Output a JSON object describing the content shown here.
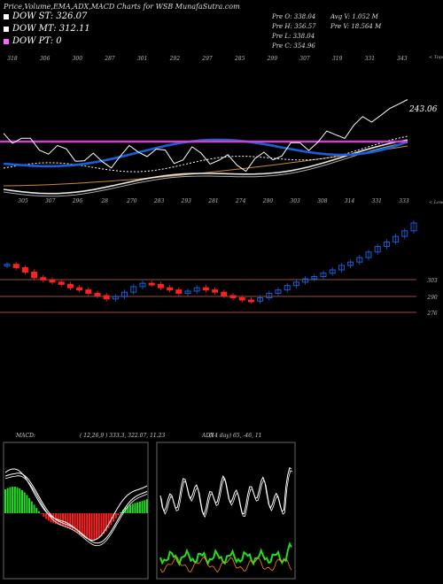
{
  "header": {
    "title": "Price,Volume,EMA,ADX,MACD Charts for WSB MunafaSutra.com",
    "legend": [
      {
        "label": "DOW ST: 326.07",
        "color": "#ffffff"
      },
      {
        "label": "DOW MT: 312.11",
        "color": "#ffffff"
      },
      {
        "label": "DOW PT: 0",
        "color": "#ff66ff"
      }
    ],
    "ohlc": {
      "open": "Pre  O: 338.04",
      "high": "Pre  H: 356.57",
      "low": "Pre  L: 338.04",
      "close": "Pre  C: 354.96",
      "avg_volume": "Avg V: 1.052  M",
      "pre_volume": "Pre  V: 18.564  M"
    }
  },
  "chart_data": [
    {
      "type": "line",
      "panel": "price-ema",
      "colors": {
        "price": "#ffffff",
        "ema_short": "#1a5fd9",
        "ema_mid": "#ffffff",
        "ema_long": "#ffffff",
        "ema_longest": "#cc8833",
        "dow_pt": "#cc44cc"
      },
      "top_tick_labels": [
        "318",
        "306",
        "300",
        "287",
        "301",
        "292",
        "297",
        "285",
        "299",
        "307",
        "319",
        "331",
        "343"
      ],
      "bottom_tick_labels": [
        "305",
        "307",
        "296",
        "28",
        "270",
        "283",
        "293",
        "281",
        "274",
        "290",
        "303",
        "308",
        "314",
        "331",
        "333"
      ],
      "right_labels": {
        "top": "< Tops",
        "bottom": "< Lows"
      },
      "last_price_label": "243.06",
      "series": [
        {
          "values": [
            318,
            315,
            311,
            306,
            304,
            302,
            300,
            297,
            295,
            292,
            290,
            287,
            289,
            293,
            298,
            301,
            300,
            297,
            295,
            292,
            294,
            297,
            295,
            293,
            290,
            288,
            286,
            285,
            288,
            292,
            295,
            299,
            302,
            305,
            307,
            310,
            313,
            317,
            320,
            324,
            329,
            334,
            338,
            343,
            348,
            355
          ]
        }
      ]
    },
    {
      "type": "bar",
      "panel": "candles",
      "price_levels": [
        "303",
        "290",
        "276"
      ],
      "colors": {
        "up": "#1a5fd9",
        "down": "#ff2020",
        "level_line": "#cc6655"
      }
    },
    {
      "type": "line",
      "panel": "macd",
      "title": "MACD:",
      "label": "( 12,26,9 ) 333.3,  322.07,  11.23",
      "colors": {
        "histogram_up": "#22dd22",
        "histogram_down": "#ff2020",
        "lines": "#ffffff"
      }
    },
    {
      "type": "line",
      "panel": "adx",
      "title": "ADX",
      "label": "(14  day) 65,  -46,  11",
      "colors": {
        "adx": "#ffffff",
        "plus_di": "#22dd22",
        "minus_di": "#ff8800"
      }
    }
  ]
}
